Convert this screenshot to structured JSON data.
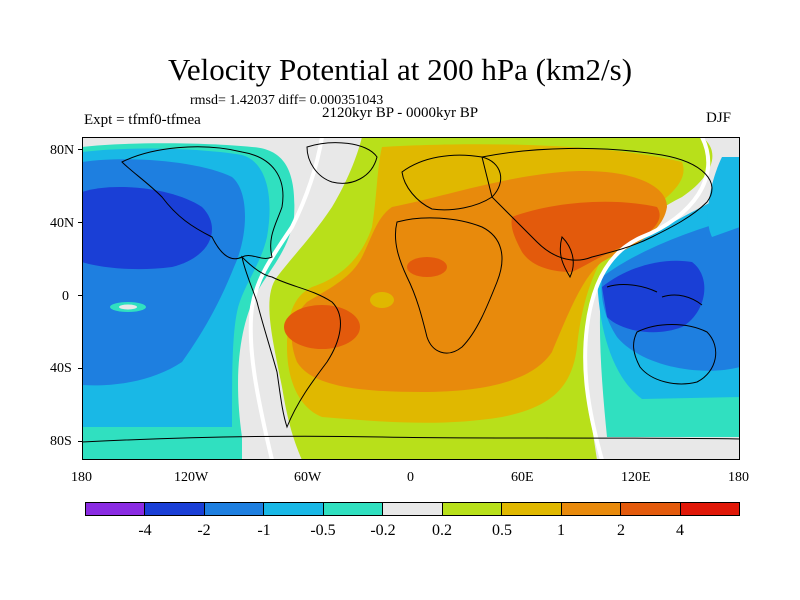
{
  "title": "Velocity Potential at 200 hPa (km2/s)",
  "stats_line": "rmsd= 1.42037 diff= 0.000351043",
  "experiment_line": "Expt = tfmf0-tfmea",
  "period_line": "2120kyr BP - 0000kyr BP",
  "season": "DJF",
  "y_axis_ticks": [
    "80N",
    "40N",
    "0",
    "40S",
    "80S"
  ],
  "x_axis_ticks": [
    "180",
    "120W",
    "60W",
    "0",
    "60E",
    "120E",
    "180"
  ],
  "colorbar": {
    "colors": [
      "#8a2be2",
      "#1a3fd6",
      "#1e7fe0",
      "#19b8e6",
      "#30e0c0",
      "#e8e8e8",
      "#b8e01a",
      "#e0b800",
      "#e88a0c",
      "#e35a0c",
      "#e01808"
    ],
    "labels": [
      "-4",
      "-2",
      "-1",
      "-0.5",
      "-0.2",
      "0.2",
      "0.5",
      "1",
      "2",
      "4"
    ]
  },
  "colors": {
    "land_outline": "#000000",
    "background": "#e8e8e8"
  }
}
